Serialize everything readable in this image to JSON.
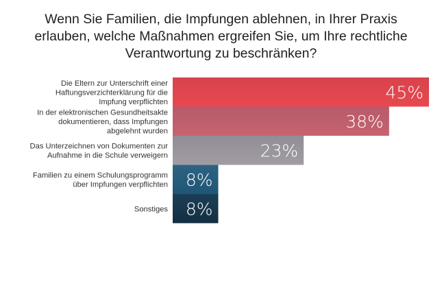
{
  "chart_data": {
    "type": "bar",
    "orientation": "horizontal",
    "title_lines": [
      "Wenn Sie Familien, die Impfungen ablehnen, in Ihrer Praxis",
      "erlauben, welche Maßnahmen ergreifen Sie, um Ihre rechtliche",
      "Verantwortung zu beschränken?"
    ],
    "categories": [
      [
        "Die Eltern zur Unterschrift einer",
        "Haftungsverzichterklärung für die",
        "Impfung verpflichten"
      ],
      [
        "In der elektronischen Gesundheitsakte",
        "dokumentieren, dass Impfungen",
        "abgelehnt wurden"
      ],
      [
        "Das Unterzeichnen von Dokumenten zur",
        "Aufnahme in die Schule verweigern"
      ],
      [
        "Familien zu einem Schulungsprogramm",
        "über Impfungen verpflichten"
      ],
      [
        "Sonstiges"
      ]
    ],
    "values": [
      45,
      38,
      23,
      8,
      8
    ],
    "value_labels": [
      "45%",
      "38%",
      "23%",
      "8%",
      "8%"
    ],
    "unit": "%",
    "xlim": [
      0,
      45
    ],
    "grid": false,
    "legend": "none",
    "colors": [
      {
        "top": "#d8434b",
        "bottom": "#e8484f"
      },
      {
        "top": "#b65a6a",
        "bottom": "#c8636f"
      },
      {
        "top": "#928e96",
        "bottom": "#a19ca4"
      },
      {
        "top": "#2e6482",
        "bottom": "#1f5576"
      },
      {
        "top": "#1c3f56",
        "bottom": "#132f42"
      }
    ]
  }
}
